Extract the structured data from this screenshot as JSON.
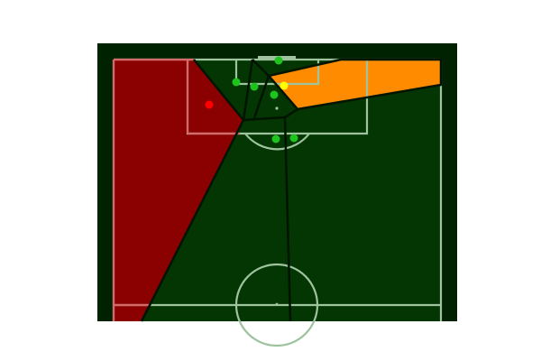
{
  "colors": {
    "background": "#ffffff",
    "frame": "#012201",
    "pitch": "#033603",
    "lines": "#9ec39e",
    "lines_highlight": "#d66a6a",
    "voronoi_edge": "#001400",
    "region_red": "#8b0000",
    "region_orange": "#ff8c00",
    "region_highlight_line": "#ff7777",
    "player_green": "#1ec31e",
    "player_red": "#ff0000",
    "player_yellow": "#ffff00",
    "ball": "#cfe3cf"
  },
  "pitch": {
    "orientation": "vertical-half",
    "attacking_goal": "top",
    "regions": [
      {
        "name": "red-control-region",
        "color_key": "region_red"
      },
      {
        "name": "orange-control-region",
        "color_key": "region_orange"
      }
    ],
    "players": [
      {
        "name": "player-green-1",
        "team": "green"
      },
      {
        "name": "player-green-2",
        "team": "green"
      },
      {
        "name": "player-green-3",
        "team": "green"
      },
      {
        "name": "player-green-4",
        "team": "green"
      },
      {
        "name": "player-green-5",
        "team": "green"
      },
      {
        "name": "player-green-6",
        "team": "green"
      },
      {
        "name": "player-red-1",
        "team": "red"
      },
      {
        "name": "player-yellow-1",
        "team": "yellow"
      }
    ]
  }
}
